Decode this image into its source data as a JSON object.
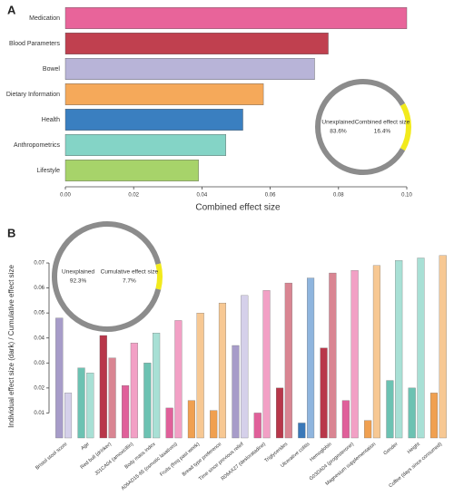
{
  "chart_data": [
    {
      "type": "barh",
      "panel": "A",
      "xlabel": "Combined effect size",
      "categories": [
        "Medication",
        "Blood Parameters",
        "Bowel",
        "Dietary Information",
        "Health",
        "Anthropometrics",
        "Lifestyle"
      ],
      "values": [
        0.1,
        0.077,
        0.073,
        0.058,
        0.052,
        0.047,
        0.039
      ],
      "colors": [
        "#e8649a",
        "#c0404f",
        "#b8b4d8",
        "#f5a95a",
        "#3a7fc0",
        "#84d4c6",
        "#a7d36a"
      ],
      "xlim": [
        0,
        0.1
      ],
      "xticks": [
        {
          "value": 0,
          "label": "0.00"
        },
        0.02,
        0.04,
        0.06,
        0.08,
        {
          "value": 0.1,
          "label": "0.10"
        }
      ]
    },
    {
      "type": "pie",
      "categories": [
        "Unexplained",
        "Combined effect size"
      ],
      "values": [
        83.6,
        16.4
      ],
      "value_labels": [
        "83.6%",
        "16.4%"
      ],
      "colors": [
        "#8c8c8c",
        "#f2ea1c"
      ]
    },
    {
      "type": "grouped_bar",
      "panel": "B",
      "ylabel": "Individual effect size (dark) / Cumulative effect size",
      "categories": [
        "Bristol stool score",
        "Age",
        "Red bull (drinker)",
        "J01CA04 (amoxicillin)",
        "Body mass index",
        "A06AD15-65 (osmotic laxatives)",
        "Fruits (freq past week)",
        "Bread type preference",
        "Time since previous relief",
        "R06AX27 (desloratadine)",
        "Triglycerides",
        "Ulcerative colitis",
        "Hemoglobin",
        "G03DA04 (progesterone)",
        "Magnesium supplementation",
        "Gender",
        "Height",
        "Coffee (days since consumed)"
      ],
      "series": [
        {
          "values": [
            0.048,
            0.028,
            0.041,
            0.021,
            0.03,
            0.012,
            0.015,
            0.011,
            0.037,
            0.01,
            0.02,
            0.006,
            0.036,
            0.015,
            0.007,
            0.023,
            0.02,
            0.018
          ],
          "colors": [
            "#a79cc9",
            "#6cc2b2",
            "#b8374a",
            "#e0609a",
            "#6cc2b2",
            "#e0609a",
            "#f0a050",
            "#f0a050",
            "#a79cc9",
            "#e0609a",
            "#b8374a",
            "#3a78b8",
            "#b8374a",
            "#e0609a",
            "#f0a050",
            "#6cc2b2",
            "#6cc2b2",
            "#f0a050"
          ]
        },
        {
          "values": [
            0.018,
            0.026,
            0.032,
            0.038,
            0.042,
            0.047,
            0.05,
            0.054,
            0.057,
            0.059,
            0.062,
            0.064,
            0.066,
            0.067,
            0.069,
            0.071,
            0.072,
            0.073
          ],
          "colors": [
            "#d5d0ea",
            "#a8e0d5",
            "#d98592",
            "#f2a0c5",
            "#a8e0d5",
            "#f2a0c5",
            "#f7c893",
            "#f7c893",
            "#d5d0ea",
            "#f2a0c5",
            "#d98592",
            "#8fb5de",
            "#d98592",
            "#f2a0c5",
            "#f7c893",
            "#a8e0d5",
            "#a8e0d5",
            "#f7c893"
          ]
        }
      ],
      "ylim": [
        0,
        0.074
      ],
      "yticks": [
        0.01,
        0.02,
        0.03,
        0.04,
        0.05,
        0.06,
        0.07
      ]
    },
    {
      "type": "pie",
      "categories": [
        "Unexplained",
        "Cumulative effect size"
      ],
      "values": [
        92.3,
        7.7
      ],
      "value_labels": [
        "92.3%",
        "7.7%"
      ],
      "colors": [
        "#8c8c8c",
        "#f2ea1c"
      ]
    }
  ]
}
